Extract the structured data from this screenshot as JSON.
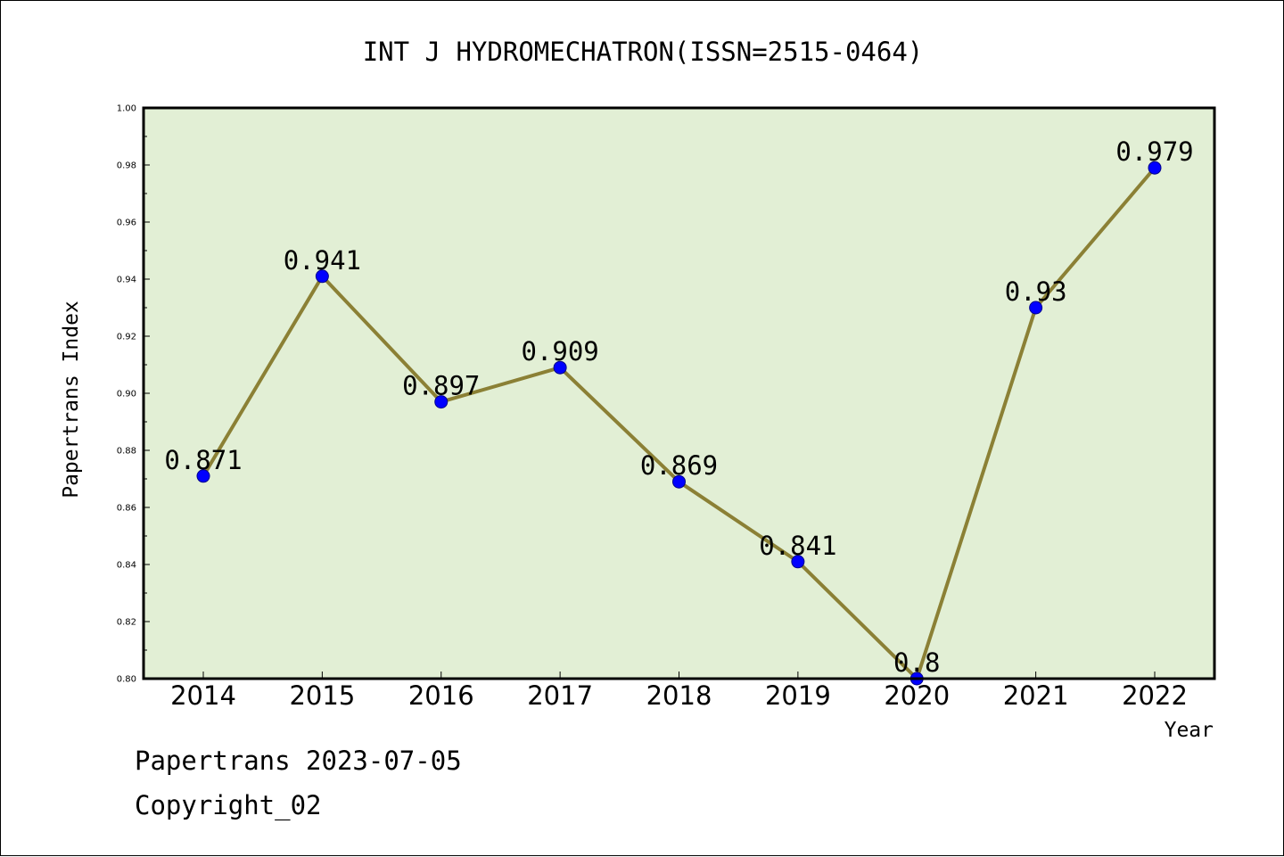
{
  "chart_data": {
    "type": "line",
    "title": "INT J HYDROMECHATRON(ISSN=2515-0464)",
    "xlabel": "Year",
    "ylabel": "Papertrans Index",
    "categories": [
      "2014",
      "2015",
      "2016",
      "2017",
      "2018",
      "2019",
      "2020",
      "2021",
      "2022"
    ],
    "series": [
      {
        "values": [
          0.871,
          0.941,
          0.897,
          0.909,
          0.869,
          0.841,
          0.8,
          0.93,
          0.979
        ],
        "point_labels": [
          "0.871",
          "0.941",
          "0.897",
          "0.909",
          "0.869",
          "0.841",
          "0.8",
          "0.93",
          "0.979"
        ]
      }
    ],
    "ylim": [
      0.8,
      1.0
    ],
    "yticks": [
      "0.80",
      "0.82",
      "0.84",
      "0.86",
      "0.88",
      "0.90",
      "0.92",
      "0.94",
      "0.96",
      "0.98",
      "1.00"
    ],
    "grid": false,
    "legend": "none",
    "colors": {
      "plot_background": "#e2efd5",
      "line": "#8b8035",
      "marker": "#0000ff",
      "marker_edge": "#00008b"
    }
  },
  "footer": {
    "date_line": "Papertrans 2023-07-05",
    "copyright_line": "Copyright_02"
  }
}
